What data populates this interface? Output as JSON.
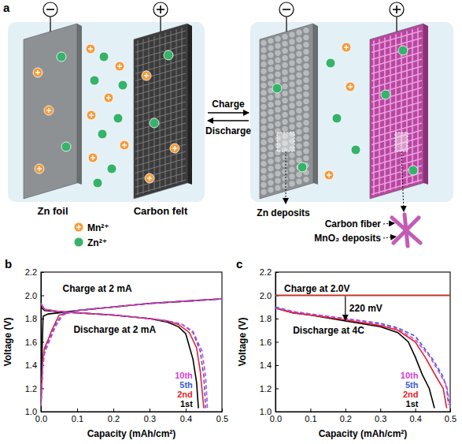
{
  "diagram": {
    "panel_label": "a",
    "electrode_labels": [
      "Zn foil",
      "Carbon felt"
    ],
    "ions": [
      {
        "label": "Mn²⁺",
        "color": "#f39c3d"
      },
      {
        "label": "Zn²⁺",
        "color": "#36b36a"
      }
    ],
    "process_labels": [
      "Charge",
      "Discharge"
    ],
    "callouts": [
      "Zn deposits",
      "Carbon fiber",
      "MnO₂ deposits"
    ]
  },
  "chart_data": [
    {
      "panel_label": "b",
      "type": "line",
      "x_label": "Capacity (mAh/cm²)",
      "y_label": "Voltage (V)",
      "xlim": [
        0,
        0.5
      ],
      "ylim": [
        1,
        2.2
      ],
      "xticks": [
        {
          "value": 0,
          "label": "0.0"
        },
        0.1,
        0.2,
        0.3,
        0.4,
        0.5
      ],
      "yticks": [
        {
          "value": 1,
          "label": "1.0"
        },
        1.2,
        1.4,
        1.6,
        1.8,
        {
          "value": 2,
          "label": "2.0"
        },
        2.2
      ],
      "annotations": [
        {
          "text": "Charge at 2 mA"
        },
        {
          "text": "Discharge at 2 mA"
        }
      ],
      "series": [
        {
          "name": "1st",
          "color": "#000000",
          "line_style": "solid",
          "charge": {
            "x": [
              0,
              0.003,
              0.006,
              0.02,
              0.05,
              0.1,
              0.2,
              0.3,
              0.4,
              0.45,
              0.5
            ],
            "values": [
              1.05,
              1.5,
              1.82,
              1.84,
              1.85,
              1.87,
              1.9,
              1.93,
              1.95,
              1.96,
              1.97
            ]
          },
          "discharge": {
            "x": [
              0,
              0.01,
              0.05,
              0.1,
              0.2,
              0.3,
              0.35,
              0.38,
              0.4,
              0.42,
              0.43,
              0.435
            ],
            "values": [
              1.9,
              1.87,
              1.86,
              1.85,
              1.83,
              1.8,
              1.77,
              1.73,
              1.67,
              1.45,
              1.25,
              1.03
            ]
          }
        },
        {
          "name": "2nd",
          "color": "#e8202a",
          "line_style": "solid",
          "charge": {
            "x": [
              0,
              0.005,
              0.01,
              0.02,
              0.03,
              0.05,
              0.1,
              0.2,
              0.3,
              0.4,
              0.5
            ],
            "values": [
              1.05,
              1.45,
              1.55,
              1.62,
              1.7,
              1.83,
              1.87,
              1.9,
              1.93,
              1.95,
              1.97
            ]
          },
          "discharge": {
            "x": [
              0,
              0.01,
              0.05,
              0.1,
              0.2,
              0.3,
              0.35,
              0.38,
              0.41,
              0.43,
              0.44,
              0.45
            ],
            "values": [
              1.93,
              1.88,
              1.86,
              1.85,
              1.83,
              1.8,
              1.78,
              1.75,
              1.68,
              1.55,
              1.35,
              1.03
            ]
          }
        },
        {
          "name": "5th",
          "color": "#3b5bdb",
          "line_style": "dashed",
          "charge": {
            "x": [
              0,
              0.005,
              0.01,
              0.02,
              0.04,
              0.06,
              0.1,
              0.2,
              0.3,
              0.4,
              0.5
            ],
            "values": [
              1.05,
              1.4,
              1.52,
              1.6,
              1.75,
              1.84,
              1.87,
              1.9,
              1.93,
              1.95,
              1.97
            ]
          },
          "discharge": {
            "x": [
              0,
              0.01,
              0.05,
              0.1,
              0.2,
              0.3,
              0.35,
              0.39,
              0.42,
              0.44,
              0.45,
              0.455
            ],
            "values": [
              1.93,
              1.88,
              1.86,
              1.85,
              1.83,
              1.8,
              1.78,
              1.75,
              1.68,
              1.52,
              1.3,
              1.03
            ]
          }
        },
        {
          "name": "10th",
          "color": "#d63fd6",
          "line_style": "dashed",
          "charge": {
            "x": [
              0,
              0.005,
              0.01,
              0.02,
              0.04,
              0.06,
              0.1,
              0.2,
              0.3,
              0.4,
              0.5
            ],
            "values": [
              1.05,
              1.38,
              1.5,
              1.58,
              1.73,
              1.83,
              1.87,
              1.9,
              1.93,
              1.95,
              1.97
            ]
          },
          "discharge": {
            "x": [
              0,
              0.01,
              0.05,
              0.1,
              0.2,
              0.3,
              0.35,
              0.39,
              0.42,
              0.445,
              0.455,
              0.46
            ],
            "values": [
              1.93,
              1.88,
              1.86,
              1.85,
              1.83,
              1.8,
              1.78,
              1.75,
              1.69,
              1.52,
              1.3,
              1.03
            ]
          }
        }
      ]
    },
    {
      "panel_label": "c",
      "type": "line",
      "x_label": "Capacity (mAh/cm²)",
      "y_label": "Voltage (V)",
      "xlim": [
        0,
        0.5
      ],
      "ylim": [
        1,
        2.2
      ],
      "xticks": [
        {
          "value": 0,
          "label": "0.0"
        },
        0.1,
        0.2,
        0.3,
        0.4,
        0.5
      ],
      "yticks": [
        {
          "value": 1,
          "label": "1.0"
        },
        1.2,
        1.4,
        1.6,
        1.8,
        {
          "value": 2,
          "label": "2.0"
        },
        2.2
      ],
      "charge_line": {
        "x": [
          0,
          0.5
        ],
        "values": [
          2,
          2
        ],
        "color": "#c0392b"
      },
      "annotations": [
        {
          "text": "Charge at 2.0V"
        },
        {
          "text": "220 mV",
          "x": 0.2
        },
        {
          "text": "Discharge at 4C"
        }
      ],
      "series": [
        {
          "name": "1st",
          "color": "#000000",
          "line_style": "solid",
          "discharge": {
            "x": [
              0,
              0.05,
              0.1,
              0.2,
              0.3,
              0.35,
              0.38,
              0.4,
              0.42,
              0.44,
              0.455
            ],
            "values": [
              1.89,
              1.85,
              1.83,
              1.78,
              1.73,
              1.68,
              1.6,
              1.47,
              1.32,
              1.2,
              1.03
            ]
          }
        },
        {
          "name": "2nd",
          "color": "#e8202a",
          "line_style": "solid",
          "discharge": {
            "x": [
              0,
              0.05,
              0.1,
              0.2,
              0.3,
              0.35,
              0.4,
              0.43,
              0.46,
              0.48,
              0.49
            ],
            "values": [
              1.89,
              1.85,
              1.83,
              1.79,
              1.74,
              1.7,
              1.6,
              1.46,
              1.3,
              1.2,
              1.03
            ]
          }
        },
        {
          "name": "5th",
          "color": "#3b5bdb",
          "line_style": "dashed",
          "discharge": {
            "x": [
              0,
              0.05,
              0.1,
              0.2,
              0.3,
              0.35,
              0.4,
              0.45,
              0.48,
              0.49,
              0.495
            ],
            "values": [
              1.9,
              1.86,
              1.84,
              1.8,
              1.76,
              1.72,
              1.65,
              1.45,
              1.3,
              1.2,
              1.06
            ]
          }
        },
        {
          "name": "10th",
          "color": "#d63fd6",
          "line_style": "dashed",
          "discharge": {
            "x": [
              0,
              0.05,
              0.1,
              0.2,
              0.3,
              0.35,
              0.4,
              0.44,
              0.47,
              0.49,
              0.5
            ],
            "values": [
              1.89,
              1.86,
              1.84,
              1.8,
              1.75,
              1.71,
              1.62,
              1.48,
              1.33,
              1.22,
              1.03
            ]
          }
        }
      ]
    }
  ]
}
